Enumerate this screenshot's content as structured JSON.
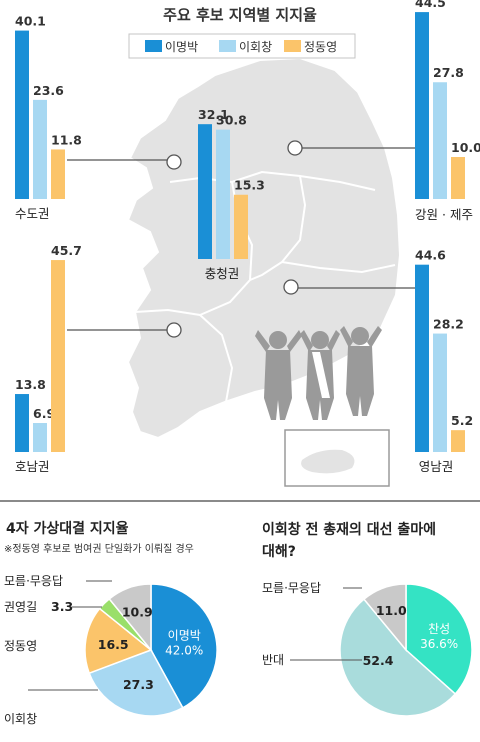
{
  "colors": {
    "lee_myung_bak": "#1a8fd6",
    "lee_hoi_chang": "#a7d8f2",
    "chung_dong_young": "#fbc46a",
    "kwon_young_gil": "#9adf6a",
    "no_answer": "#c9c9c9",
    "support": "#34e3c4",
    "oppose": "#a9dcdc",
    "map_fill": "#e3e3e3",
    "map_border": "#ffffff",
    "divider": "#8a8a8a"
  },
  "chart_data": [
    {
      "type": "bar",
      "title": "주요 후보 지역별 지지율",
      "series_names": [
        "이명박",
        "이회창",
        "정동영"
      ],
      "regions": [
        {
          "name": "수도권",
          "values": [
            40.1,
            23.6,
            11.8
          ]
        },
        {
          "name": "충청권",
          "values": [
            32.1,
            30.8,
            15.3
          ]
        },
        {
          "name": "강원 · 제주",
          "values": [
            44.5,
            27.8,
            10.0
          ]
        },
        {
          "name": "호남권",
          "values": [
            13.8,
            6.9,
            45.7
          ]
        },
        {
          "name": "영남권",
          "values": [
            44.6,
            28.2,
            5.2
          ]
        }
      ]
    },
    {
      "type": "pie",
      "title": "4자 가상대결 지지율",
      "subtitle": "※정동영 후보로 범여권 단일화가 이뤄질 경우",
      "slices": [
        {
          "label": "이명박",
          "value": 42.0,
          "display": "42.0%"
        },
        {
          "label": "이회창",
          "value": 27.3,
          "display": "27.3"
        },
        {
          "label": "정동영",
          "value": 16.5,
          "display": "16.5"
        },
        {
          "label": "권영길",
          "value": 3.3,
          "display": "3.3"
        },
        {
          "label": "모름·무응답",
          "value": 10.9,
          "display": "10.9"
        }
      ]
    },
    {
      "type": "pie",
      "title_line1": "이회창 전 총재의 대선 출마에",
      "title_line2": "대해?",
      "slices": [
        {
          "label": "찬성",
          "value": 36.6,
          "display": "36.6%"
        },
        {
          "label": "반대",
          "value": 52.4,
          "display": "52.4"
        },
        {
          "label": "모름·무응답",
          "value": 11.0,
          "display": "11.0"
        }
      ]
    }
  ]
}
